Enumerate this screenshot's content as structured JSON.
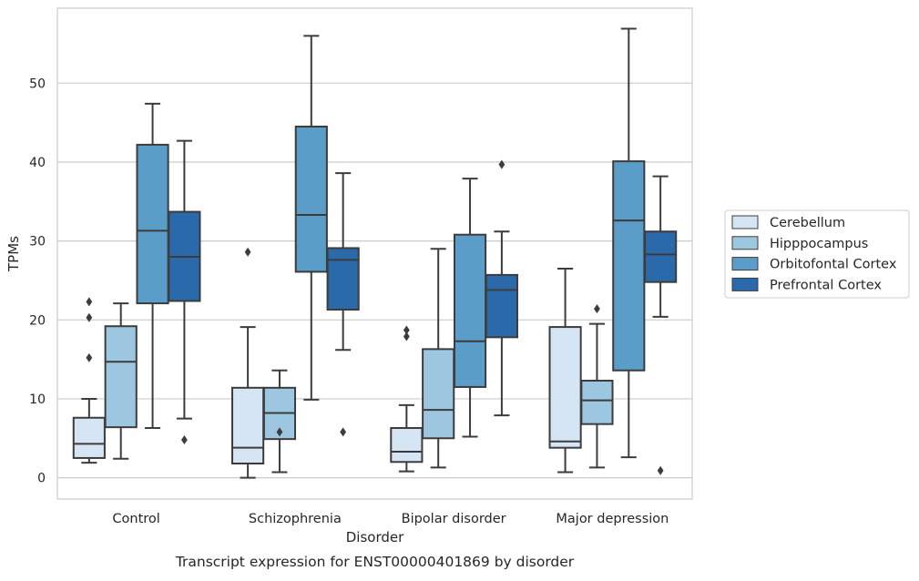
{
  "chart_data": {
    "type": "box",
    "xlabel": "Disorder",
    "ylabel": "TPMs",
    "caption": "Transcript expression for ENST00000401869 by disorder",
    "ylim": [
      -2.7,
      59.5
    ],
    "yticks": [
      0,
      10,
      20,
      30,
      40,
      50
    ],
    "grid": "horizontal",
    "legend_position": "right",
    "categories": [
      "Control",
      "Schizophrenia",
      "Bipolar disorder",
      "Major depression"
    ],
    "series": [
      {
        "name": "Cerebellum",
        "color": "#d6e5f3",
        "boxes": [
          {
            "whislo": 1.9,
            "q1": 2.5,
            "med": 4.3,
            "q3": 7.6,
            "whishi": 10.0,
            "fliers": [
              15.2,
              20.3,
              22.3
            ]
          },
          {
            "whislo": 0.0,
            "q1": 1.8,
            "med": 3.8,
            "q3": 11.4,
            "whishi": 19.1,
            "fliers": [
              28.6
            ]
          },
          {
            "whislo": 0.8,
            "q1": 2.0,
            "med": 3.3,
            "q3": 6.3,
            "whishi": 9.2,
            "fliers": [
              17.9,
              18.7
            ]
          },
          {
            "whislo": 0.7,
            "q1": 3.8,
            "med": 4.6,
            "q3": 19.1,
            "whishi": 26.5,
            "fliers": []
          }
        ]
      },
      {
        "name": "Hipppocampus",
        "color": "#9dc7e0",
        "boxes": [
          {
            "whislo": 2.4,
            "q1": 6.4,
            "med": 14.7,
            "q3": 19.2,
            "whishi": 22.1,
            "fliers": []
          },
          {
            "whislo": 0.7,
            "q1": 4.9,
            "med": 8.2,
            "q3": 11.4,
            "whishi": 13.6,
            "fliers": [
              5.8
            ]
          },
          {
            "whislo": 1.3,
            "q1": 5.0,
            "med": 8.6,
            "q3": 16.3,
            "whishi": 29.0,
            "fliers": []
          },
          {
            "whislo": 1.3,
            "q1": 6.8,
            "med": 9.8,
            "q3": 12.3,
            "whishi": 19.5,
            "fliers": [
              21.4
            ]
          }
        ]
      },
      {
        "name": "Orbitofontal Cortex",
        "color": "#5a9dc8",
        "boxes": [
          {
            "whislo": 6.3,
            "q1": 22.1,
            "med": 31.3,
            "q3": 42.2,
            "whishi": 47.4,
            "fliers": []
          },
          {
            "whislo": 9.9,
            "q1": 26.1,
            "med": 33.3,
            "q3": 44.5,
            "whishi": 56.0,
            "fliers": []
          },
          {
            "whislo": 5.2,
            "q1": 11.5,
            "med": 17.3,
            "q3": 30.8,
            "whishi": 37.9,
            "fliers": []
          },
          {
            "whislo": 2.6,
            "q1": 13.6,
            "med": 32.6,
            "q3": 40.1,
            "whishi": 56.9,
            "fliers": []
          }
        ]
      },
      {
        "name": "Prefrontal Cortex",
        "color": "#2a6aaa",
        "boxes": [
          {
            "whislo": 7.5,
            "q1": 22.4,
            "med": 28.0,
            "q3": 33.7,
            "whishi": 42.7,
            "fliers": [
              4.8
            ]
          },
          {
            "whislo": 16.2,
            "q1": 21.3,
            "med": 27.6,
            "q3": 29.1,
            "whishi": 38.6,
            "fliers": [
              5.8
            ]
          },
          {
            "whislo": 7.9,
            "q1": 17.8,
            "med": 23.8,
            "q3": 25.7,
            "whishi": 31.2,
            "fliers": [
              39.7
            ]
          },
          {
            "whislo": 20.4,
            "q1": 24.8,
            "med": 28.3,
            "q3": 31.2,
            "whishi": 38.2,
            "fliers": [
              0.9
            ]
          }
        ]
      }
    ]
  }
}
